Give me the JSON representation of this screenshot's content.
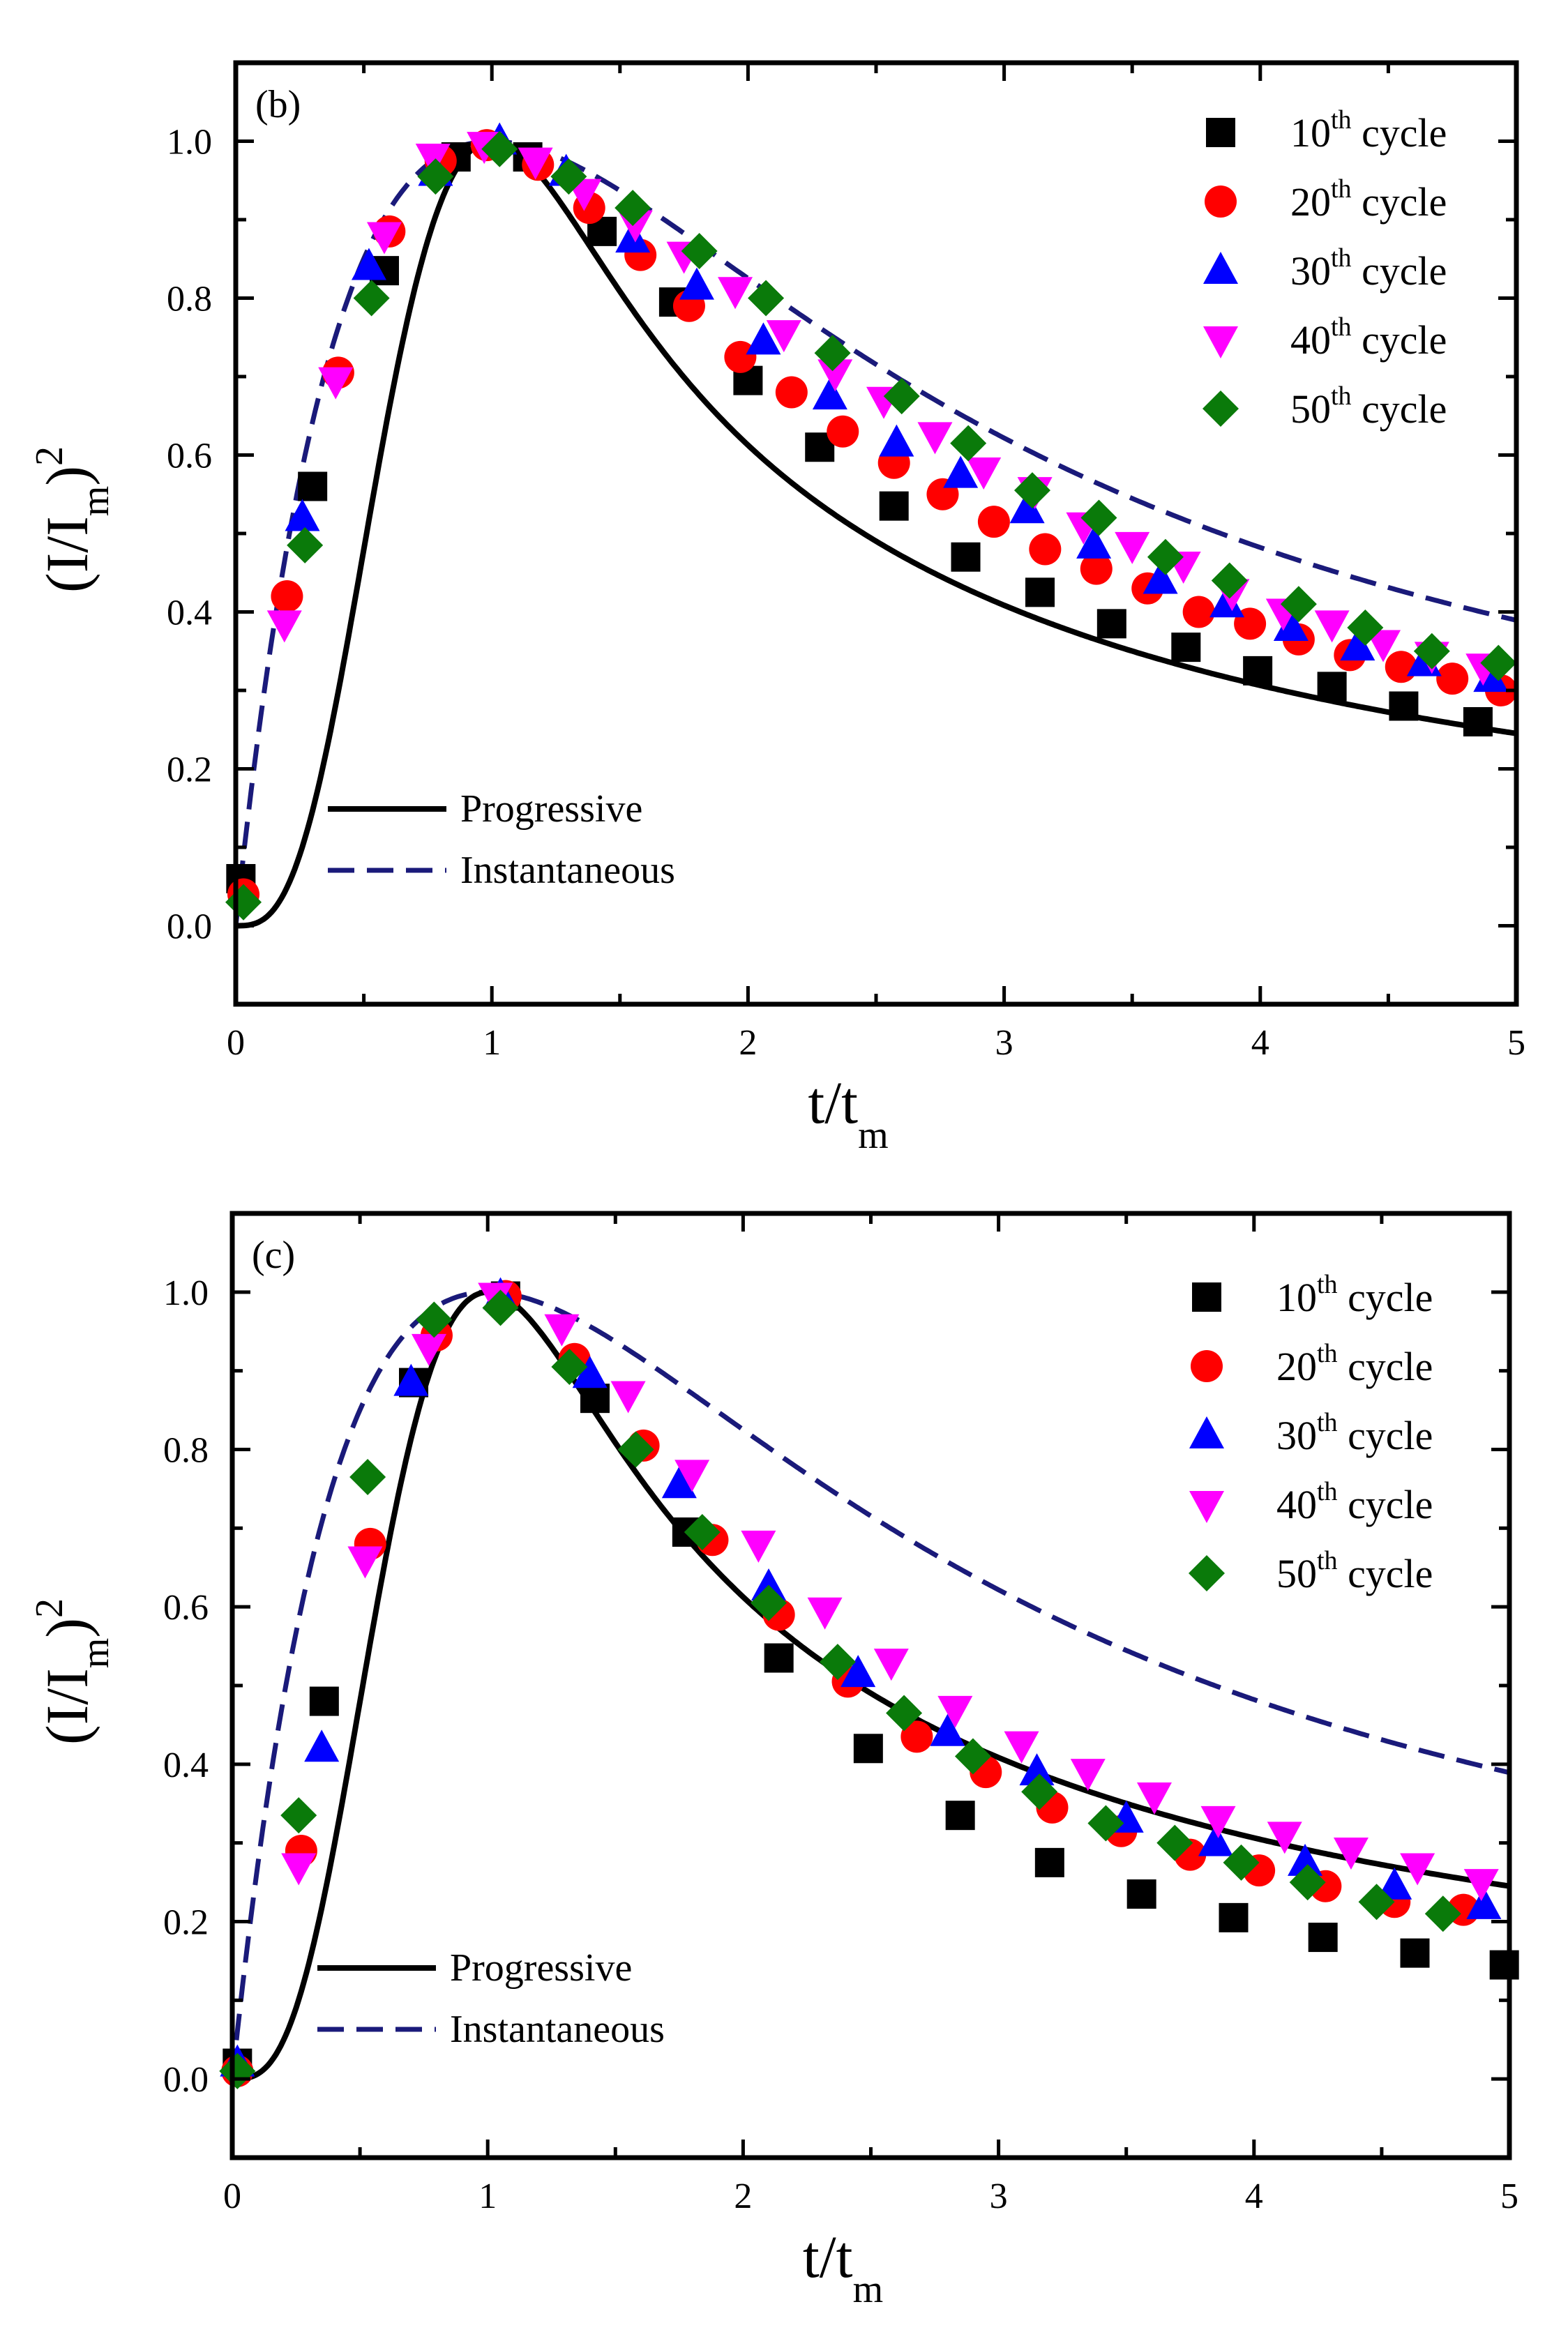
{
  "colors": {
    "axis": "#000000",
    "progressive": "#000000",
    "instantaneous": "#1a1a7a",
    "cycle10": "#000000",
    "cycle20": "#ff0000",
    "cycle30": "#0000ff",
    "cycle40": "#ff00ff",
    "cycle50": "#0a7a0a"
  },
  "chart_data": [
    {
      "type": "scatter",
      "panel_label": "(b)",
      "xlabel": "t/t",
      "xlabel_sub": "m",
      "ylabel": "(I/I",
      "ylabel_sub": "m",
      "ylabel_close": ")",
      "ylabel_sup": "2",
      "xlim": [
        0,
        5
      ],
      "ylim": [
        -0.1,
        1.1
      ],
      "xticks": [
        "0",
        "1",
        "2",
        "3",
        "4",
        "5"
      ],
      "yticks": [
        "0.0",
        "0.2",
        "0.4",
        "0.6",
        "0.8",
        "1.0"
      ],
      "legend_position": "top-right",
      "line_legend": [
        {
          "label": "Progressive",
          "style": "solid"
        },
        {
          "label": "Instantaneous",
          "style": "dashed"
        }
      ],
      "series": [
        {
          "name": "10th cycle",
          "ord": "10",
          "sup": "th",
          "tail": " cycle",
          "marker": "square",
          "x": [
            0.02,
            0.3,
            0.58,
            0.86,
            1.14,
            1.43,
            1.71,
            2.0,
            2.28,
            2.57,
            2.85,
            3.14,
            3.42,
            3.71,
            3.99,
            4.28,
            4.56,
            4.85
          ],
          "y": [
            0.06,
            0.56,
            0.835,
            0.98,
            0.98,
            0.885,
            0.795,
            0.695,
            0.61,
            0.535,
            0.47,
            0.425,
            0.385,
            0.355,
            0.325,
            0.305,
            0.28,
            0.26
          ]
        },
        {
          "name": "20th cycle",
          "ord": "20",
          "sup": "th",
          "tail": " cycle",
          "marker": "circle",
          "x": [
            0.03,
            0.2,
            0.4,
            0.6,
            0.8,
            0.98,
            1.18,
            1.38,
            1.58,
            1.77,
            1.97,
            2.17,
            2.37,
            2.57,
            2.76,
            2.96,
            3.16,
            3.36,
            3.56,
            3.76,
            3.96,
            4.15,
            4.35,
            4.55,
            4.75,
            4.94
          ],
          "y": [
            0.04,
            0.42,
            0.705,
            0.885,
            0.975,
            0.995,
            0.97,
            0.915,
            0.855,
            0.79,
            0.725,
            0.68,
            0.63,
            0.59,
            0.55,
            0.515,
            0.48,
            0.455,
            0.43,
            0.4,
            0.385,
            0.365,
            0.345,
            0.33,
            0.315,
            0.3
          ]
        },
        {
          "name": "30th cycle",
          "ord": "30",
          "sup": "th",
          "tail": " cycle",
          "marker": "triangle-up",
          "x": [
            0.26,
            0.52,
            0.78,
            1.03,
            1.29,
            1.55,
            1.8,
            2.06,
            2.32,
            2.58,
            2.83,
            3.09,
            3.35,
            3.61,
            3.87,
            4.12,
            4.38,
            4.64,
            4.9
          ],
          "y": [
            0.52,
            0.84,
            0.96,
            1.0,
            0.96,
            0.875,
            0.815,
            0.745,
            0.675,
            0.615,
            0.575,
            0.53,
            0.485,
            0.44,
            0.41,
            0.38,
            0.355,
            0.335,
            0.315
          ]
        },
        {
          "name": "40th cycle",
          "ord": "40",
          "sup": "th",
          "tail": " cycle",
          "marker": "triangle-down",
          "x": [
            0.19,
            0.39,
            0.58,
            0.77,
            0.97,
            1.17,
            1.36,
            1.56,
            1.75,
            1.95,
            2.14,
            2.34,
            2.53,
            2.73,
            2.92,
            3.12,
            3.31,
            3.5,
            3.7,
            3.89,
            4.09,
            4.28,
            4.48,
            4.67,
            4.87
          ],
          "y": [
            0.385,
            0.695,
            0.88,
            0.98,
            0.995,
            0.975,
            0.935,
            0.895,
            0.855,
            0.81,
            0.755,
            0.705,
            0.67,
            0.625,
            0.58,
            0.555,
            0.51,
            0.485,
            0.46,
            0.425,
            0.4,
            0.385,
            0.36,
            0.345,
            0.33
          ]
        },
        {
          "name": "50th cycle",
          "ord": "50",
          "sup": "th",
          "tail": " cycle",
          "marker": "diamond",
          "x": [
            0.03,
            0.27,
            0.53,
            0.78,
            1.03,
            1.3,
            1.55,
            1.81,
            2.07,
            2.33,
            2.6,
            2.86,
            3.11,
            3.37,
            3.63,
            3.88,
            4.15,
            4.41,
            4.67,
            4.93
          ],
          "y": [
            0.03,
            0.485,
            0.8,
            0.955,
            0.99,
            0.955,
            0.915,
            0.86,
            0.8,
            0.73,
            0.675,
            0.615,
            0.555,
            0.52,
            0.47,
            0.44,
            0.41,
            0.38,
            0.35,
            0.335
          ]
        }
      ]
    },
    {
      "type": "scatter",
      "panel_label": "(c)",
      "xlabel": "t/t",
      "xlabel_sub": "m",
      "ylabel": "(I/I",
      "ylabel_sub": "m",
      "ylabel_close": ")",
      "ylabel_sup": "2",
      "xlim": [
        0,
        5
      ],
      "ylim": [
        -0.1,
        1.1
      ],
      "xticks": [
        "0",
        "1",
        "2",
        "3",
        "4",
        "5"
      ],
      "yticks": [
        "0.0",
        "0.2",
        "0.4",
        "0.6",
        "0.8",
        "1.0"
      ],
      "legend_position": "top-right",
      "line_legend": [
        {
          "label": "Progressive",
          "style": "solid"
        },
        {
          "label": "Instantaneous",
          "style": "dashed"
        }
      ],
      "series": [
        {
          "name": "10th cycle",
          "ord": "10",
          "sup": "th",
          "tail": " cycle",
          "marker": "square",
          "x": [
            0.02,
            0.36,
            0.71,
            1.07,
            1.42,
            1.78,
            2.14,
            2.49,
            2.85,
            3.2,
            3.56,
            3.92,
            4.27,
            4.63,
            4.98
          ],
          "y": [
            0.02,
            0.48,
            0.885,
            0.995,
            0.865,
            0.695,
            0.535,
            0.42,
            0.335,
            0.275,
            0.235,
            0.205,
            0.18,
            0.16,
            0.145
          ]
        },
        {
          "name": "20th cycle",
          "ord": "20",
          "sup": "th",
          "tail": " cycle",
          "marker": "circle",
          "x": [
            0.02,
            0.27,
            0.54,
            0.8,
            1.07,
            1.34,
            1.61,
            1.88,
            2.14,
            2.41,
            2.68,
            2.95,
            3.21,
            3.48,
            3.75,
            4.02,
            4.28,
            4.55,
            4.82
          ],
          "y": [
            0.01,
            0.29,
            0.68,
            0.945,
            0.995,
            0.915,
            0.805,
            0.685,
            0.59,
            0.505,
            0.435,
            0.39,
            0.345,
            0.315,
            0.285,
            0.265,
            0.245,
            0.225,
            0.215
          ]
        },
        {
          "name": "30th cycle",
          "ord": "30",
          "sup": "th",
          "tail": " cycle",
          "marker": "triangle-up",
          "x": [
            0.02,
            0.35,
            0.7,
            1.05,
            1.4,
            1.75,
            2.1,
            2.45,
            2.8,
            3.15,
            3.5,
            3.85,
            4.2,
            4.55,
            4.9
          ],
          "y": [
            0.02,
            0.42,
            0.885,
            0.995,
            0.895,
            0.755,
            0.625,
            0.515,
            0.44,
            0.39,
            0.33,
            0.3,
            0.275,
            0.245,
            0.22
          ]
        },
        {
          "name": "40th cycle",
          "ord": "40",
          "sup": "th",
          "tail": " cycle",
          "marker": "triangle-down",
          "x": [
            0.26,
            0.52,
            0.77,
            1.03,
            1.29,
            1.55,
            1.8,
            2.06,
            2.32,
            2.58,
            2.83,
            3.09,
            3.35,
            3.61,
            3.86,
            4.12,
            4.38,
            4.64,
            4.89
          ],
          "y": [
            0.27,
            0.66,
            0.93,
            0.995,
            0.955,
            0.87,
            0.77,
            0.68,
            0.595,
            0.53,
            0.47,
            0.425,
            0.39,
            0.36,
            0.33,
            0.31,
            0.29,
            0.27,
            0.25
          ]
        },
        {
          "name": "50th cycle",
          "ord": "50",
          "sup": "th",
          "tail": " cycle",
          "marker": "diamond",
          "x": [
            0.02,
            0.26,
            0.53,
            0.79,
            1.05,
            1.32,
            1.58,
            1.84,
            2.1,
            2.37,
            2.63,
            2.9,
            3.16,
            3.42,
            3.69,
            3.95,
            4.21,
            4.48,
            4.74
          ],
          "y": [
            0.01,
            0.335,
            0.765,
            0.965,
            0.98,
            0.905,
            0.8,
            0.695,
            0.605,
            0.53,
            0.465,
            0.41,
            0.365,
            0.325,
            0.3,
            0.275,
            0.25,
            0.225,
            0.21
          ]
        }
      ]
    }
  ]
}
